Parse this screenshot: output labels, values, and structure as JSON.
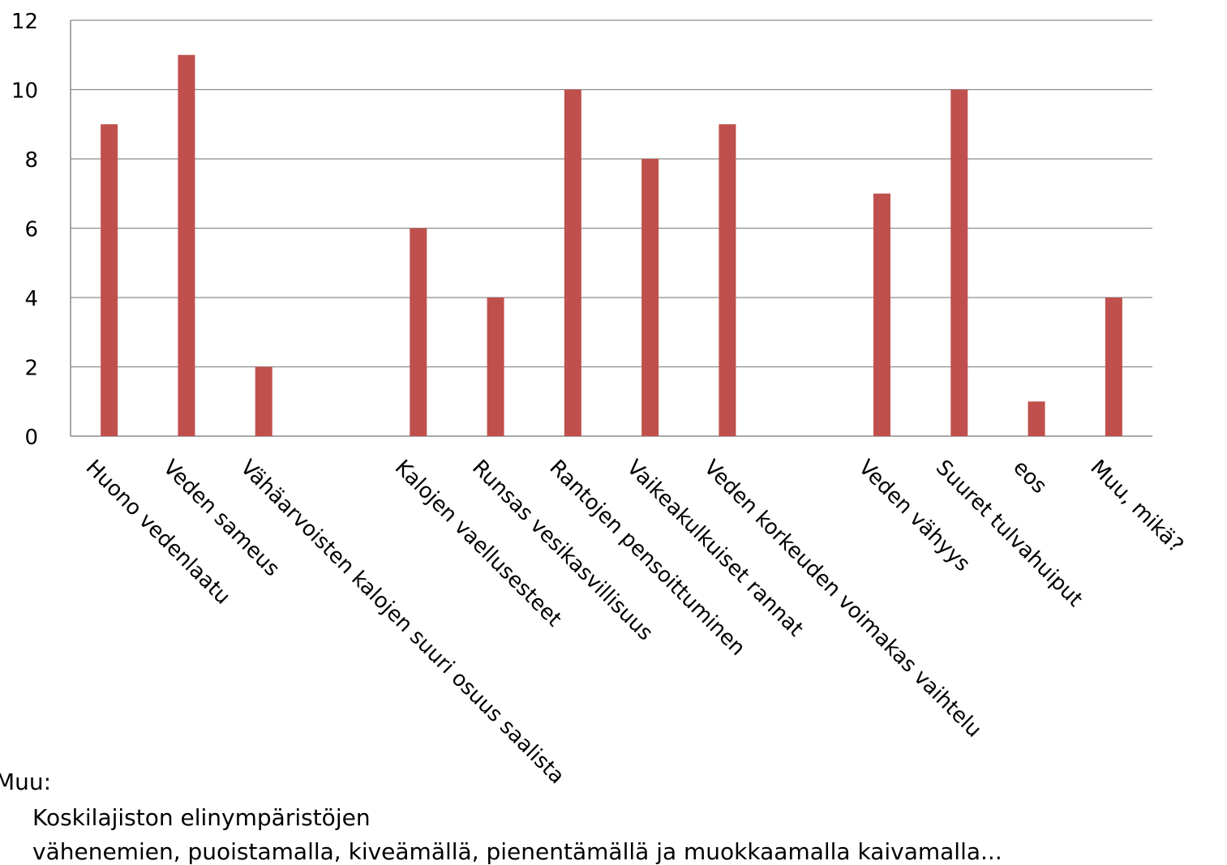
{
  "chart_data": {
    "type": "bar",
    "title": "",
    "xlabel": "",
    "ylabel": "",
    "ylim": [
      0,
      12
    ],
    "yticks": [
      0,
      2,
      4,
      6,
      8,
      10,
      12
    ],
    "grid": true,
    "legend": "none",
    "bar_color": "#c0504d",
    "categories": [
      "Huono vedenlaatu",
      "Veden sameus",
      "Vähäarvoisten kalojen suuri osuus saalista",
      "",
      "Kalojen vaellusesteet",
      "Runsas vesikasvillisuus",
      "Rantojen pensoittuminen",
      "Vaikeakulkuiset rannat",
      "Veden korkeuden voimakas vaihtelu",
      "",
      "Veden vähyys",
      "Suuret tulvahuiput",
      "eos",
      "Muu, mikä?"
    ],
    "values": [
      9,
      11,
      2,
      null,
      6,
      4,
      10,
      8,
      9,
      null,
      7,
      10,
      1,
      4
    ]
  },
  "notes": {
    "label": "Muu:",
    "line1": "Koskilajiston elinympäristöjen",
    "line2": "vähenemien, puoistamalla, kiveämällä, pienentämällä ja muokkaamalla kaivamalla..."
  }
}
